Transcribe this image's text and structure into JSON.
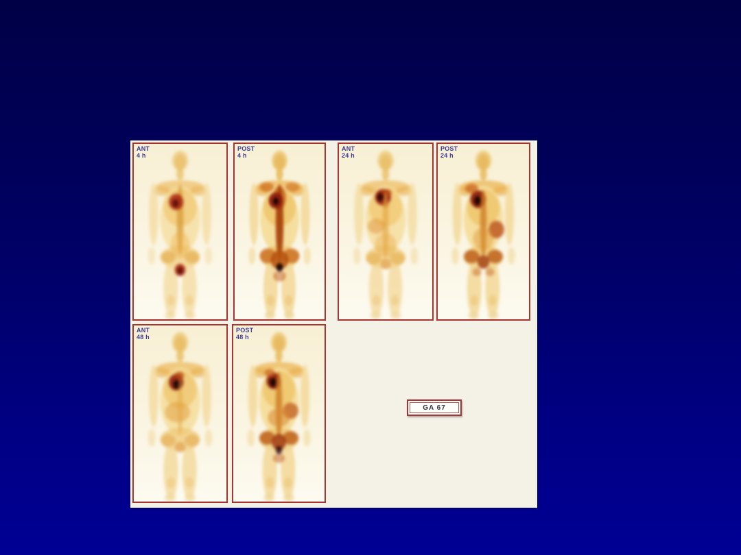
{
  "slide": {
    "background_top_color": "#000046",
    "background_bottom_color": "#000094",
    "sheet_color": "#f4f1e7",
    "panel_border_color": "#a83431",
    "panel_label_color": "#3a3a99",
    "hotspot_color": "#8c1a0c",
    "body_tone_color": "#ecb95c"
  },
  "panels": [
    {
      "view": "ANT",
      "time": "4 h"
    },
    {
      "view": "POST",
      "time": "4 h"
    },
    {
      "view": "ANT",
      "time": "24 h"
    },
    {
      "view": "POST",
      "time": "24 h"
    },
    {
      "view": "ANT",
      "time": "48 h"
    },
    {
      "view": "POST",
      "time": "48 h"
    }
  ],
  "tracer_label": "GA 67"
}
